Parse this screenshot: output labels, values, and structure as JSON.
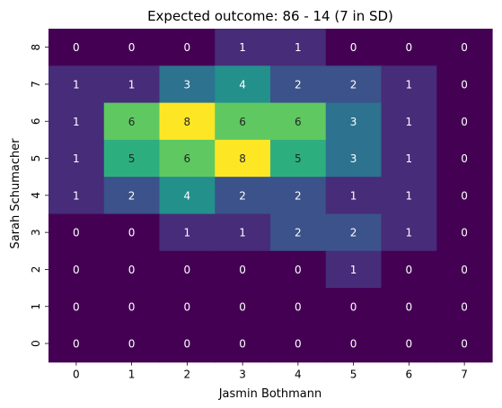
{
  "chart_data": {
    "type": "heatmap",
    "title": "Expected outcome: 86 - 14 (7 in SD)",
    "xlabel": "Jasmin Bothmann",
    "ylabel": "Sarah Schumacher",
    "x_categories": [
      "0",
      "1",
      "2",
      "3",
      "4",
      "5",
      "6",
      "7"
    ],
    "y_categories_top_to_bottom": [
      "8",
      "7",
      "6",
      "5",
      "4",
      "3",
      "2",
      "1",
      "0"
    ],
    "values_top_to_bottom": [
      [
        0,
        0,
        0,
        1,
        1,
        0,
        0,
        0
      ],
      [
        1,
        1,
        3,
        4,
        2,
        2,
        1,
        0
      ],
      [
        1,
        6,
        8,
        6,
        6,
        3,
        1,
        0
      ],
      [
        1,
        5,
        6,
        8,
        5,
        3,
        1,
        0
      ],
      [
        1,
        2,
        4,
        2,
        2,
        1,
        1,
        0
      ],
      [
        0,
        0,
        1,
        1,
        2,
        2,
        1,
        0
      ],
      [
        0,
        0,
        0,
        0,
        0,
        1,
        0,
        0
      ],
      [
        0,
        0,
        0,
        0,
        0,
        0,
        0,
        0
      ],
      [
        0,
        0,
        0,
        0,
        0,
        0,
        0,
        0
      ]
    ],
    "colormap": "viridis",
    "value_range": [
      0,
      8
    ],
    "colorbar": false,
    "grid": false
  }
}
